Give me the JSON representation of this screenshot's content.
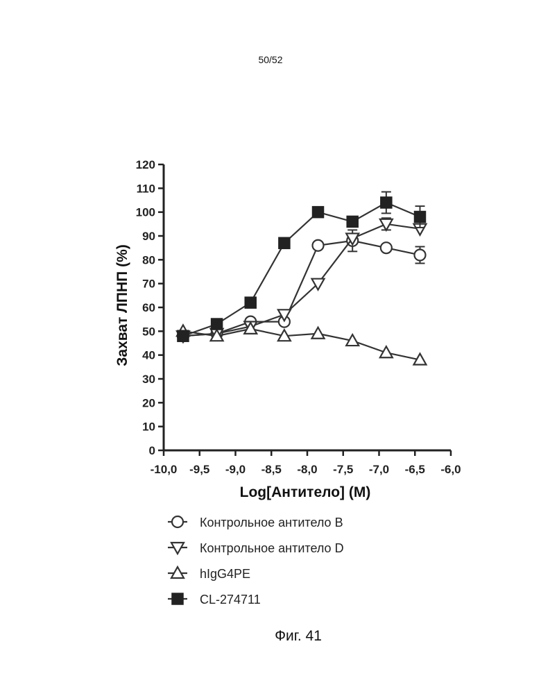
{
  "header": {
    "page_number": "50/52"
  },
  "caption": {
    "text": "Фиг. 41"
  },
  "chart_data": {
    "type": "line",
    "title": "",
    "xlabel": "Log[Антитело] (M)",
    "ylabel": "Захват ЛПНП (%)",
    "xlim": [
      -10.0,
      -6.0
    ],
    "ylim": [
      0,
      120
    ],
    "x_ticks": [
      -10.0,
      -9.5,
      -9.0,
      -8.5,
      -8.0,
      -7.5,
      -7.0,
      -6.5,
      -6.0
    ],
    "x_tick_labels": [
      "-10,0",
      "-9,5",
      "-9,0",
      "-8,5",
      "-8,0",
      "-7,5",
      "-7,0",
      "-6,5",
      "-6,0"
    ],
    "y_ticks": [
      0,
      10,
      20,
      30,
      40,
      50,
      60,
      70,
      80,
      90,
      100,
      110,
      120
    ],
    "y_tick_labels": [
      "0",
      "10",
      "20",
      "30",
      "40",
      "50",
      "60",
      "70",
      "80",
      "90",
      "100",
      "110",
      "120"
    ],
    "grid": false,
    "legend_position": "bottom",
    "series": [
      {
        "name": "Контрольное антитело B",
        "marker": "circle-open",
        "x": [
          -9.73,
          -9.26,
          -8.79,
          -8.32,
          -7.85,
          -7.37,
          -6.9,
          -6.43
        ],
        "y": [
          48,
          49,
          54,
          54,
          86,
          88,
          85,
          82
        ],
        "err": [
          0,
          0,
          0,
          0,
          0,
          4.5,
          0,
          3.5
        ]
      },
      {
        "name": "Контрольное антитело D",
        "marker": "triangle-down-open",
        "x": [
          -9.73,
          -9.26,
          -8.79,
          -8.32,
          -7.85,
          -7.37,
          -6.9,
          -6.43
        ],
        "y": [
          48,
          49,
          52,
          57,
          70,
          89,
          95,
          93
        ],
        "err": [
          0,
          0,
          0,
          0,
          0,
          0,
          2.5,
          0
        ]
      },
      {
        "name": "hIgG4PE",
        "marker": "triangle-up-open",
        "x": [
          -9.73,
          -9.26,
          -8.79,
          -8.32,
          -7.85,
          -7.37,
          -6.9,
          -6.43
        ],
        "y": [
          50,
          48,
          51,
          48,
          49,
          46,
          41,
          38
        ],
        "err": [
          0,
          0,
          0,
          0,
          0,
          0,
          0,
          0
        ]
      },
      {
        "name": "CL-274711",
        "marker": "square-filled",
        "x": [
          -9.73,
          -9.26,
          -8.79,
          -8.32,
          -7.85,
          -7.37,
          -6.9,
          -6.43
        ],
        "y": [
          48,
          53,
          62,
          87,
          100,
          96,
          104,
          98
        ],
        "err": [
          0,
          0,
          0,
          0,
          0,
          0,
          4.5,
          4.5
        ]
      }
    ]
  }
}
